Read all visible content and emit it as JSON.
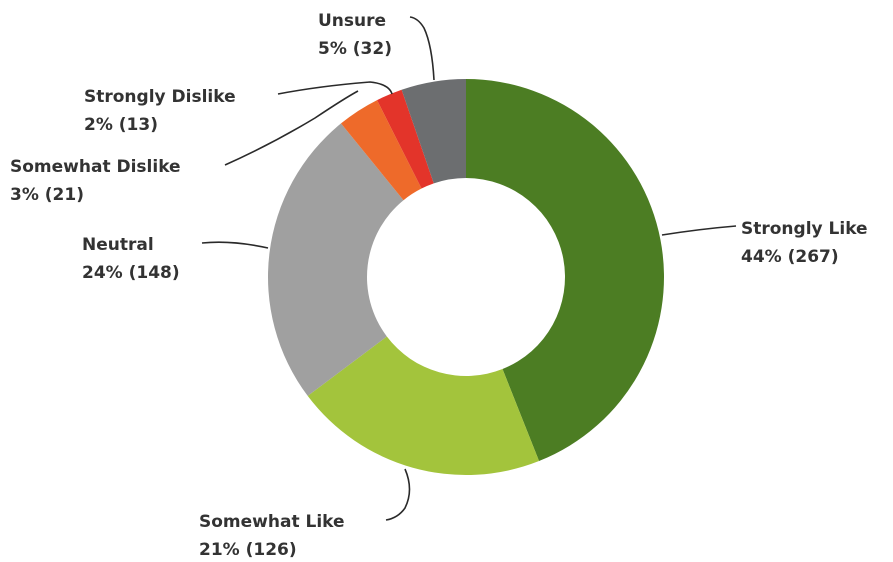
{
  "chart_data": {
    "type": "pie",
    "style": "donut",
    "start_angle_deg": 90,
    "direction": "clockwise",
    "slices": [
      {
        "label": "Strongly Like",
        "value_text": "44% (267)",
        "percent": 44,
        "count": 267,
        "color": "#4c7d23"
      },
      {
        "label": "Somewhat Like",
        "value_text": "21% (126)",
        "percent": 21,
        "count": 126,
        "color": "#a3c43c"
      },
      {
        "label": "Neutral",
        "value_text": "24% (148)",
        "percent": 24,
        "count": 148,
        "color": "#a0a0a0"
      },
      {
        "label": "Somewhat Dislike",
        "value_text": "3% (21)",
        "percent": 3,
        "count": 21,
        "color": "#ee6a2a"
      },
      {
        "label": "Strongly Dislike",
        "value_text": "2% (13)",
        "percent": 2,
        "count": 13,
        "color": "#e3342a"
      },
      {
        "label": "Unsure",
        "value_text": "5% (32)",
        "percent": 5,
        "count": 32,
        "color": "#6c6e70"
      }
    ]
  }
}
